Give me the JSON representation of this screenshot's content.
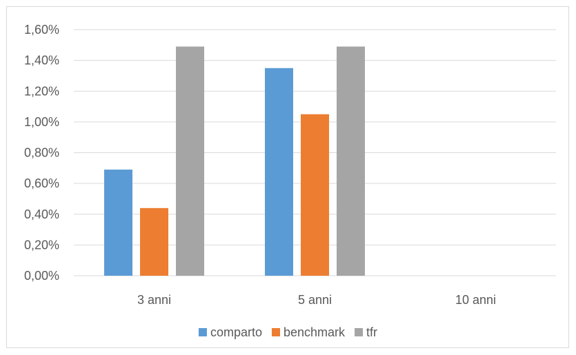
{
  "chart_data": {
    "type": "bar",
    "title": "",
    "xlabel": "",
    "ylabel": "",
    "categories": [
      "3 anni",
      "5 anni",
      "10 anni"
    ],
    "series": [
      {
        "name": "comparto",
        "color": "#5b9bd5",
        "values": [
          0.69,
          1.35,
          null
        ]
      },
      {
        "name": "benchmark",
        "color": "#ed7d31",
        "values": [
          0.44,
          1.05,
          null
        ]
      },
      {
        "name": "tfr",
        "color": "#a5a5a5",
        "values": [
          1.49,
          1.49,
          null
        ]
      }
    ],
    "ylim": [
      0,
      1.6
    ],
    "yticks": [
      {
        "value": 0.0,
        "label": "0,00%"
      },
      {
        "value": 0.2,
        "label": "0,20%"
      },
      {
        "value": 0.4,
        "label": "0,40%"
      },
      {
        "value": 0.6,
        "label": "0,60%"
      },
      {
        "value": 0.8,
        "label": "0,80%"
      },
      {
        "value": 1.0,
        "label": "1,00%"
      },
      {
        "value": 1.2,
        "label": "1,20%"
      },
      {
        "value": 1.4,
        "label": "1,40%"
      },
      {
        "value": 1.6,
        "label": "1,60%"
      }
    ],
    "grid": true,
    "legend_position": "bottom",
    "gridline_color": "#d9d9d9"
  }
}
